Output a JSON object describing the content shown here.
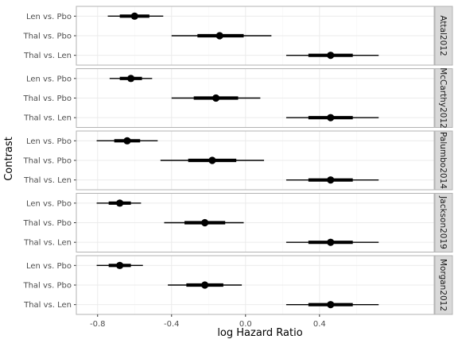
{
  "chart_data": {
    "type": "forest",
    "xlabel": "log Hazard Ratio",
    "ylabel": "Contrast",
    "xlim": [
      -0.915,
      1.02
    ],
    "x_ticks": [
      -0.8,
      -0.4,
      0.0,
      0.4
    ],
    "x_tick_labels": [
      "-0.8",
      "-0.4",
      "0.0",
      "0.4"
    ],
    "grid": true,
    "contrasts": [
      "Len vs. Pbo",
      "Thal vs. Pbo",
      "Thal vs. Len"
    ],
    "panels": [
      {
        "name": "Attal2012",
        "rows": [
          {
            "contrast": "Len vs. Pbo",
            "estimate": -0.6,
            "inner": [
              -0.68,
              -0.52
            ],
            "outer": [
              -0.745,
              -0.445
            ]
          },
          {
            "contrast": "Thal vs. Pbo",
            "estimate": -0.14,
            "inner": [
              -0.26,
              -0.01
            ],
            "outer": [
              -0.4,
              0.14
            ]
          },
          {
            "contrast": "Thal vs. Len",
            "estimate": 0.46,
            "inner": [
              0.34,
              0.58
            ],
            "outer": [
              0.22,
              0.72
            ]
          }
        ]
      },
      {
        "name": "McCarthy2012",
        "rows": [
          {
            "contrast": "Len vs. Pbo",
            "estimate": -0.62,
            "inner": [
              -0.68,
              -0.56
            ],
            "outer": [
              -0.735,
              -0.505
            ]
          },
          {
            "contrast": "Thal vs. Pbo",
            "estimate": -0.16,
            "inner": [
              -0.28,
              -0.04
            ],
            "outer": [
              -0.4,
              0.08
            ]
          },
          {
            "contrast": "Thal vs. Len",
            "estimate": 0.46,
            "inner": [
              0.34,
              0.58
            ],
            "outer": [
              0.22,
              0.72
            ]
          }
        ]
      },
      {
        "name": "Palumbo2014",
        "rows": [
          {
            "contrast": "Len vs. Pbo",
            "estimate": -0.64,
            "inner": [
              -0.71,
              -0.57
            ],
            "outer": [
              -0.805,
              -0.475
            ]
          },
          {
            "contrast": "Thal vs. Pbo",
            "estimate": -0.18,
            "inner": [
              -0.31,
              -0.05
            ],
            "outer": [
              -0.46,
              0.1
            ]
          },
          {
            "contrast": "Thal vs. Len",
            "estimate": 0.46,
            "inner": [
              0.34,
              0.58
            ],
            "outer": [
              0.22,
              0.72
            ]
          }
        ]
      },
      {
        "name": "Jackson2019",
        "rows": [
          {
            "contrast": "Len vs. Pbo",
            "estimate": -0.68,
            "inner": [
              -0.74,
              -0.62
            ],
            "outer": [
              -0.805,
              -0.565
            ]
          },
          {
            "contrast": "Thal vs. Pbo",
            "estimate": -0.22,
            "inner": [
              -0.33,
              -0.11
            ],
            "outer": [
              -0.44,
              -0.01
            ]
          },
          {
            "contrast": "Thal vs. Len",
            "estimate": 0.46,
            "inner": [
              0.34,
              0.58
            ],
            "outer": [
              0.22,
              0.72
            ]
          }
        ]
      },
      {
        "name": "Morgan2012",
        "rows": [
          {
            "contrast": "Len vs. Pbo",
            "estimate": -0.68,
            "inner": [
              -0.74,
              -0.62
            ],
            "outer": [
              -0.805,
              -0.555
            ]
          },
          {
            "contrast": "Thal vs. Pbo",
            "estimate": -0.22,
            "inner": [
              -0.32,
              -0.12
            ],
            "outer": [
              -0.42,
              -0.02
            ]
          },
          {
            "contrast": "Thal vs. Len",
            "estimate": 0.46,
            "inner": [
              0.34,
              0.58
            ],
            "outer": [
              0.22,
              0.72
            ]
          }
        ]
      }
    ]
  }
}
